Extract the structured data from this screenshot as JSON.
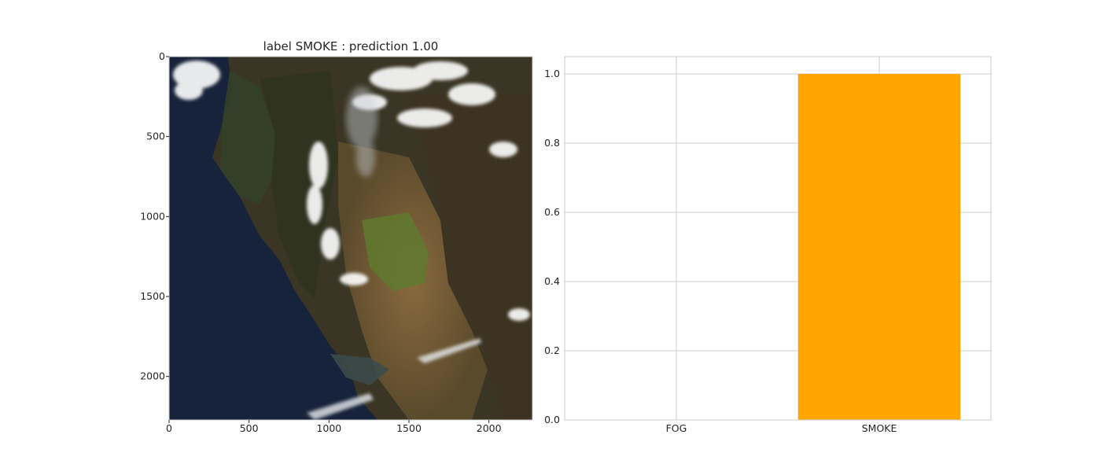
{
  "chart_data": [
    {
      "type": "image",
      "title": "label  SMOKE : prediction 1.00",
      "xlim": [
        0,
        2272
      ],
      "ylim": [
        2272,
        0
      ],
      "x_ticks": [
        "0",
        "500",
        "1000",
        "1500",
        "2000"
      ],
      "y_ticks": [
        "0",
        "500",
        "1000",
        "1500",
        "2000"
      ],
      "x_tick_values": [
        0,
        500,
        1000,
        1500,
        2000
      ],
      "y_tick_values": [
        0,
        500,
        1000,
        1500,
        2000
      ]
    },
    {
      "type": "bar",
      "categories": [
        "FOG",
        "SMOKE"
      ],
      "values": [
        0.0,
        1.0
      ],
      "ylim": [
        0,
        1.05
      ],
      "y_ticks": [
        "0.0",
        "0.2",
        "0.4",
        "0.6",
        "0.8",
        "1.0"
      ],
      "y_tick_values": [
        0.0,
        0.2,
        0.4,
        0.6,
        0.8,
        1.0
      ],
      "grid": true,
      "bar_color": "#ffa500"
    }
  ]
}
